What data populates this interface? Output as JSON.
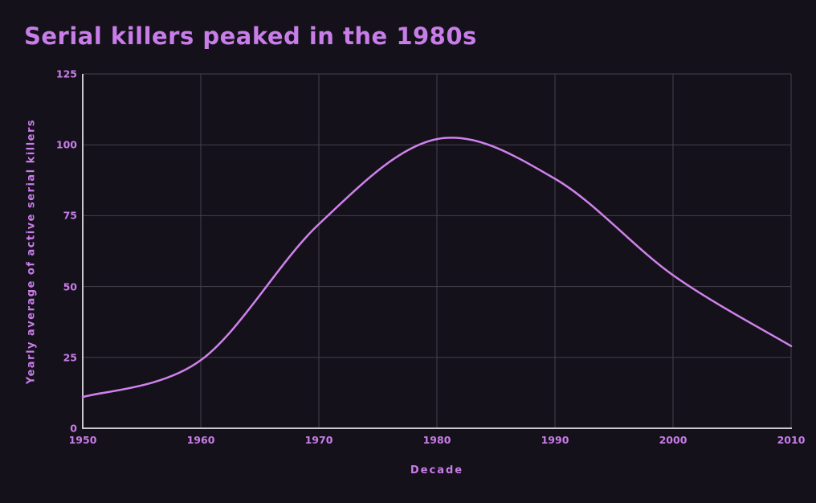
{
  "chart_data": {
    "type": "line",
    "title": "Serial killers peaked in the 1980s",
    "xlabel": "Decade",
    "ylabel": "Yearly average of active serial killers",
    "x": [
      1950,
      1960,
      1970,
      1980,
      1990,
      2000,
      2010
    ],
    "values": [
      11,
      24,
      72,
      102,
      88,
      54,
      29
    ],
    "series_name": "Yearly average of active serial killers",
    "xticks": [
      "1950",
      "1960",
      "1970",
      "1980",
      "1990",
      "2000",
      "2010"
    ],
    "yticks": [
      "0",
      "25",
      "50",
      "75",
      "100",
      "125"
    ],
    "ytick_values": [
      0,
      25,
      50,
      75,
      100,
      125
    ],
    "xlim": [
      1950,
      2010
    ],
    "ylim": [
      0,
      125
    ],
    "grid": true,
    "legend": "none",
    "smooth": true,
    "annotations": [],
    "colors": {
      "background": "#15111b",
      "accent": "#c87de9",
      "line": "#cf82ec",
      "grid": "#45414d",
      "axis": "#c9c9ce"
    }
  }
}
